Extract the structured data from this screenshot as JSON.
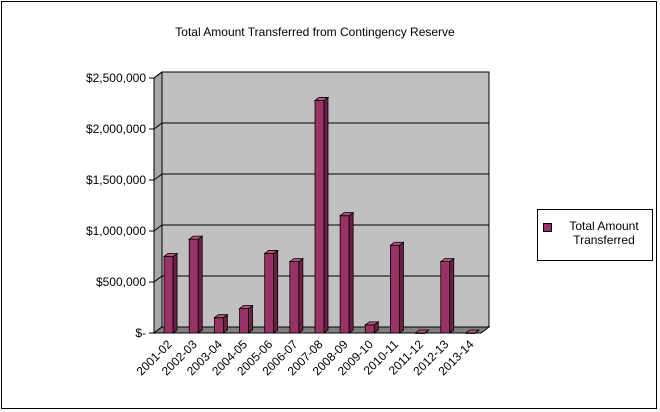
{
  "chart_data": {
    "type": "bar",
    "title": "Total Amount Transferred from Contingency Reserve",
    "xlabel": "",
    "ylabel": "",
    "categories": [
      "2001-02",
      "2002-03",
      "2003-04",
      "2004-05",
      "2005-06",
      "2006-07",
      "2007-08",
      "2008-09",
      "2009-10",
      "2010-11",
      "2011-12",
      "2012-13",
      "2013-14"
    ],
    "series": [
      {
        "name": "Total Amount Transferred",
        "values": [
          750000,
          920000,
          150000,
          240000,
          780000,
          700000,
          2280000,
          1150000,
          80000,
          860000,
          0,
          700000,
          0
        ]
      }
    ],
    "ylim": [
      0,
      2500000
    ],
    "yticks": [
      0,
      500000,
      1000000,
      1500000,
      2000000,
      2500000
    ],
    "ytick_labels": [
      "$-",
      "$500,000",
      "$1,000,000",
      "$1,500,000",
      "$2,000,000",
      "$2,500,000"
    ],
    "grid": true,
    "legend_position": "right",
    "colors": {
      "bar": "#993366",
      "bar_top": "#b0567f",
      "bar_side": "#6e1f48",
      "wall": "#c0c0c0",
      "floor": "#808080"
    }
  },
  "legend": {
    "label": "Total Amount Transferred"
  }
}
